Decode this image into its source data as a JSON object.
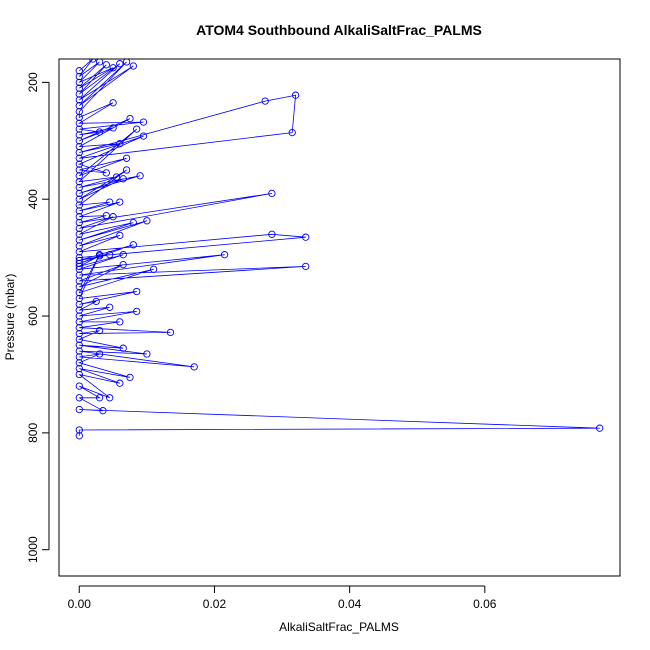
{
  "chart_data": {
    "type": "scatter",
    "title": "ATOM4 Southbound AlkaliSaltFrac_PALMS",
    "xlabel": "AlkaliSaltFrac_PALMS",
    "ylabel": "Pressure (mbar)",
    "xlim": [
      -0.003,
      0.08
    ],
    "ylim": [
      1045,
      160
    ],
    "y_reversed": true,
    "x_ticks": [
      0.0,
      0.02,
      0.04,
      0.06
    ],
    "x_tick_labels": [
      "0.00",
      "0.02",
      "0.04",
      "0.06"
    ],
    "y_ticks": [
      200,
      400,
      600,
      800,
      1000
    ],
    "y_tick_labels": [
      "200",
      "400",
      "600",
      "800",
      "1000"
    ],
    "grid": false,
    "legend": "none",
    "colors": {
      "series": "#0000ff",
      "axis": "#000000",
      "background": "#ffffff"
    },
    "series": [
      {
        "x": [
          0.0,
          0.002,
          0.0,
          0.003,
          0.0,
          0.005,
          0.0,
          0.004,
          0.0,
          0.006,
          0.0,
          0.008,
          0.0,
          0.007,
          0.0,
          0.0,
          0.005,
          0.0,
          0.0095,
          0.0,
          0.003,
          0.0,
          0.005,
          0.0,
          0.0075,
          0.0,
          0.006,
          0.0,
          0.0275,
          0.032,
          0.0315,
          0.0,
          0.0095,
          0.0,
          0.004,
          0.0,
          0.007,
          0.0,
          0.0085,
          0.0,
          0.0055,
          0.0,
          0.009,
          0.0,
          0.0065,
          0.0,
          0.007,
          0.0,
          0.0045,
          0.0,
          0.006,
          0.0,
          0.004,
          0.0,
          0.0285,
          0.0,
          0.005,
          0.0,
          0.008,
          0.0,
          0.01,
          0.0,
          0.006,
          0.0,
          0.0285,
          0.0335,
          0.0,
          0.0045,
          0.0,
          0.008,
          0.0,
          0.003,
          0.0,
          0.0065,
          0.0,
          0.0215,
          0.0,
          0.0335,
          0.0,
          0.0065,
          0.0,
          0.011,
          0.0,
          0.003,
          0.0,
          0.0085,
          0.0,
          0.0025,
          0.0,
          0.0045,
          0.0,
          0.0085,
          0.0,
          0.006,
          0.0,
          0.0135,
          0.0,
          0.003,
          0.0,
          0.0065,
          0.0,
          0.01,
          0.0,
          0.017,
          0.0,
          0.003,
          0.0,
          0.0075,
          0.0,
          0.006,
          0.0,
          0.0045,
          0.0,
          0.003,
          0.0,
          0.0035,
          0.0,
          0.077,
          0.0,
          0.0
        ],
        "y": [
          180,
          160,
          190,
          165,
          200,
          175,
          210,
          170,
          220,
          168,
          230,
          172,
          240,
          165,
          250,
          260,
          235,
          270,
          268,
          280,
          285,
          290,
          278,
          300,
          262,
          310,
          305,
          320,
          232,
          222,
          286,
          330,
          292,
          340,
          355,
          350,
          330,
          360,
          280,
          370,
          362,
          380,
          360,
          390,
          365,
          400,
          350,
          410,
          405,
          420,
          405,
          430,
          428,
          440,
          390,
          450,
          430,
          460,
          440,
          470,
          437,
          480,
          462,
          490,
          460,
          465,
          500,
          495,
          505,
          478,
          510,
          497,
          515,
          495,
          520,
          495,
          530,
          515,
          540,
          512,
          550,
          520,
          560,
          495,
          570,
          558,
          580,
          575,
          590,
          585,
          600,
          592,
          610,
          610,
          620,
          628,
          630,
          625,
          640,
          655,
          650,
          665,
          660,
          687,
          670,
          665,
          680,
          705,
          690,
          715,
          700,
          740,
          720,
          740,
          740,
          762,
          760,
          792,
          795,
          805
        ]
      }
    ]
  }
}
